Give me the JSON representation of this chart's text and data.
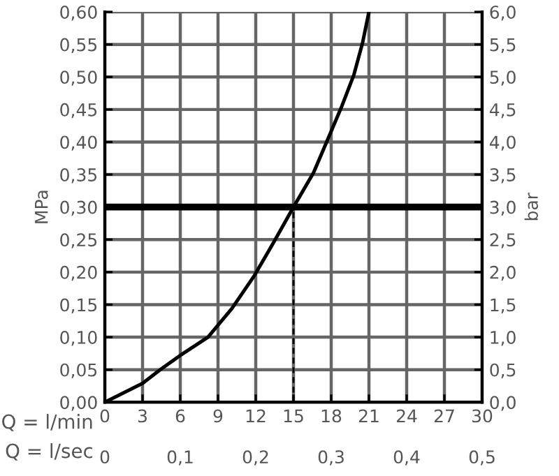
{
  "chart_data": {
    "type": "line",
    "xlabel": "Q = l/min",
    "x2label": "Q = l/sec",
    "ylabel": "MPa",
    "y2label": "bar",
    "series": [
      {
        "color": "#000000",
        "x": [
          0,
          3,
          4.4,
          6,
          8.2,
          10.1,
          11.9,
          13.4,
          15,
          16.6,
          17.7,
          18.8,
          19.8,
          20.5,
          21
        ],
        "values": [
          0,
          0.029,
          0.05,
          0.072,
          0.1,
          0.144,
          0.195,
          0.245,
          0.3,
          0.353,
          0.403,
          0.453,
          0.503,
          0.553,
          0.6
        ]
      },
      {
        "color": "#000000",
        "line_style": "dashed",
        "x": [
          15,
          15
        ],
        "values": [
          0,
          0.3
        ]
      }
    ],
    "ref_lines": [
      {
        "axis": "y",
        "value": 0.3,
        "color": "#000000"
      }
    ],
    "xlim": [
      0,
      30
    ],
    "xticks": [
      0,
      3,
      6,
      9,
      12,
      15,
      18,
      21,
      24,
      27,
      30
    ],
    "x2lim": [
      0,
      0.5
    ],
    "x2ticks": [
      0,
      {
        "value": 0.1,
        "label": "0,1"
      },
      {
        "value": 0.2,
        "label": "0,2"
      },
      {
        "value": 0.3,
        "label": "0,3"
      },
      {
        "value": 0.4,
        "label": "0,4"
      },
      {
        "value": 0.5,
        "label": "0,5"
      }
    ],
    "ylim": [
      0,
      0.6
    ],
    "yticks": [
      {
        "value": 0,
        "label": "0,00"
      },
      {
        "value": 0.05,
        "label": "0,05"
      },
      {
        "value": 0.1,
        "label": "0,10"
      },
      {
        "value": 0.15,
        "label": "0,15"
      },
      {
        "value": 0.2,
        "label": "0,20"
      },
      {
        "value": 0.25,
        "label": "0,25"
      },
      {
        "value": 0.3,
        "label": "0,30"
      },
      {
        "value": 0.35,
        "label": "0,35"
      },
      {
        "value": 0.4,
        "label": "0,40"
      },
      {
        "value": 0.45,
        "label": "0,45"
      },
      {
        "value": 0.5,
        "label": "0,50"
      },
      {
        "value": 0.55,
        "label": "0,55"
      },
      {
        "value": 0.6,
        "label": "0,60"
      }
    ],
    "y2lim": [
      0,
      6
    ],
    "y2ticks": [
      {
        "value": 0,
        "label": "0,0"
      },
      {
        "value": 0.5,
        "label": "0,5"
      },
      {
        "value": 1,
        "label": "1,0"
      },
      {
        "value": 1.5,
        "label": "1,5"
      },
      {
        "value": 2,
        "label": "2,0"
      },
      {
        "value": 2.5,
        "label": "2,5"
      },
      {
        "value": 3,
        "label": "3,0"
      },
      {
        "value": 3.5,
        "label": "3,5"
      },
      {
        "value": 4,
        "label": "4,0"
      },
      {
        "value": 4.5,
        "label": "4,5"
      },
      {
        "value": 5,
        "label": "5,0"
      },
      {
        "value": 5.5,
        "label": "5,5"
      },
      {
        "value": 6,
        "label": "6,0"
      }
    ],
    "grid": true,
    "marker": "none",
    "line_style": "solid"
  }
}
